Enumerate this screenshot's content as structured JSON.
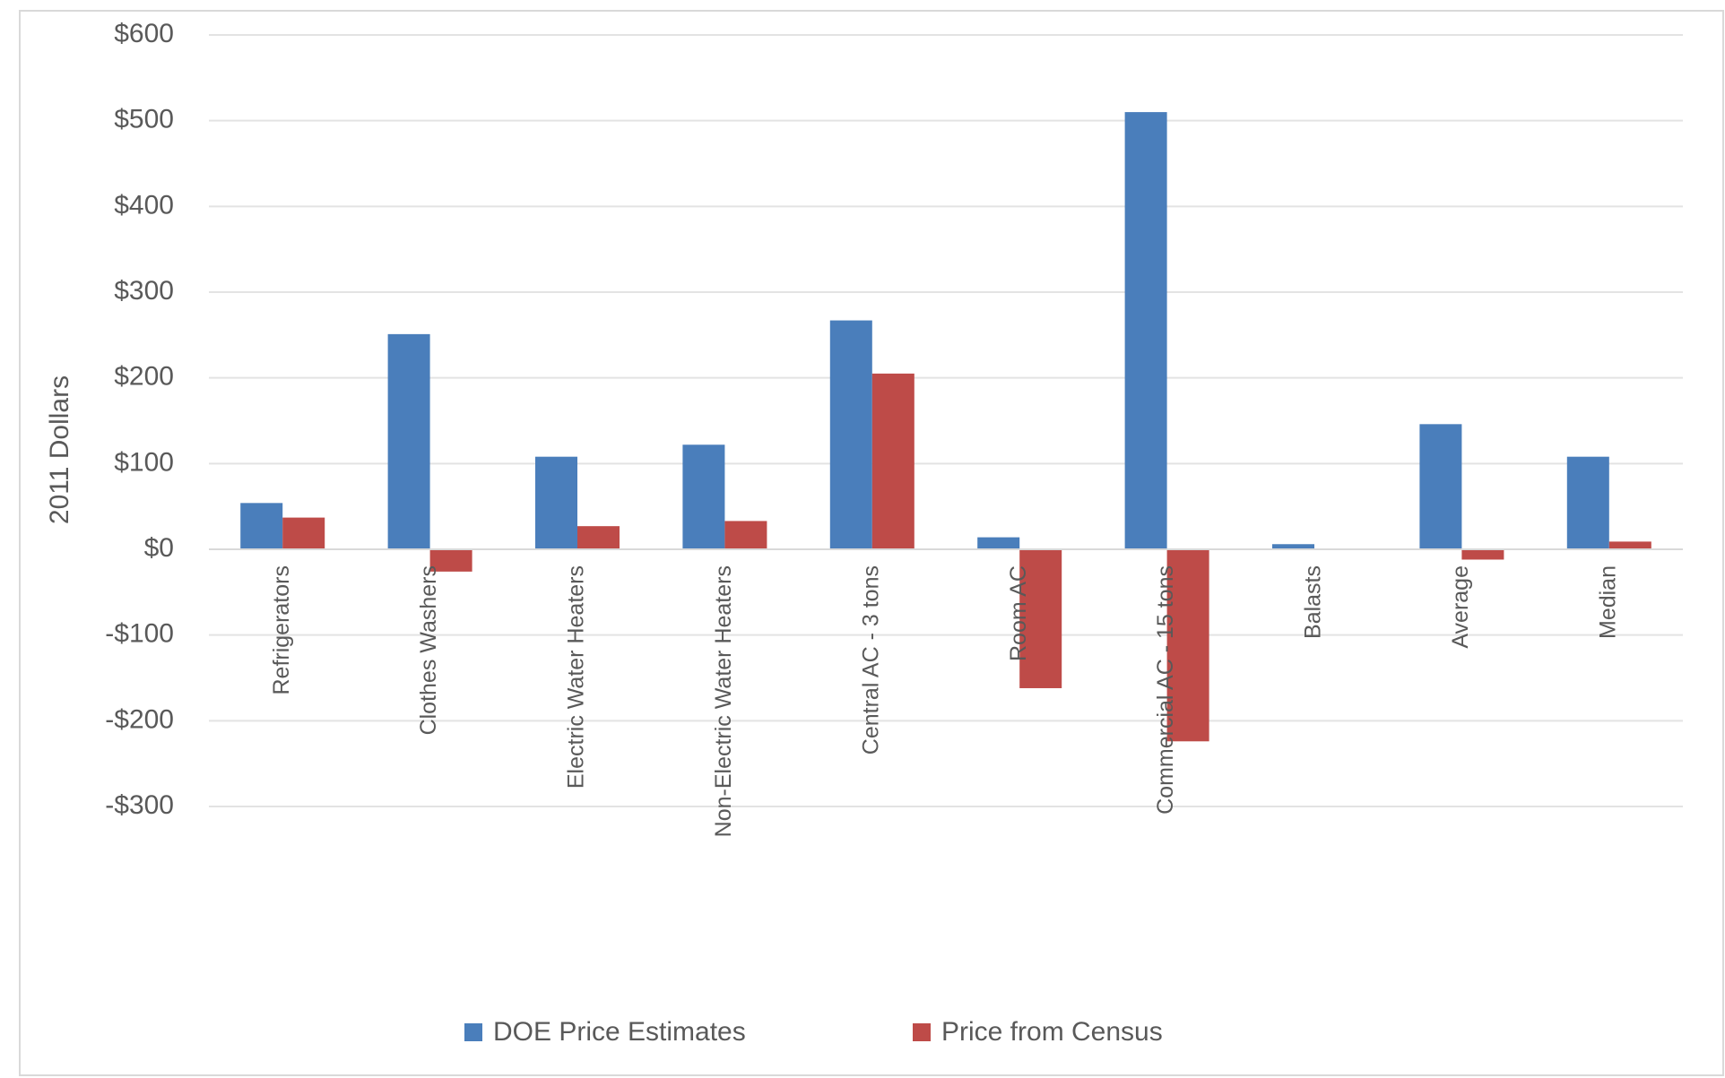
{
  "chart_data": {
    "type": "bar",
    "y_label": "2011 Dollars",
    "categories": [
      "Refrigerators",
      "Clothes Washers",
      "Electric Water Heaters",
      "Non-Electric Water Heaters",
      "Central AC - 3 tons",
      "Room AC",
      "Commercial AC - 15 tons",
      "Balasts",
      "Average",
      "Median"
    ],
    "series": [
      {
        "name": "DOE Price Estimates",
        "color": "#4a7ebb",
        "values": [
          54,
          251,
          108,
          122,
          267,
          14,
          510,
          6,
          146,
          108
        ]
      },
      {
        "name": "Price from Census",
        "color": "#be4b48",
        "values": [
          37,
          -26,
          27,
          33,
          205,
          -162,
          -224,
          0,
          -12,
          9
        ]
      }
    ],
    "ylim": [
      -300,
      600
    ],
    "yticks": [
      {
        "value": -300,
        "label": "-$300"
      },
      {
        "value": -200,
        "label": "-$200"
      },
      {
        "value": -100,
        "label": "-$100"
      },
      {
        "value": 0,
        "label": "$0"
      },
      {
        "value": 100,
        "label": "$100"
      },
      {
        "value": 200,
        "label": "$200"
      },
      {
        "value": 300,
        "label": "$300"
      },
      {
        "value": 400,
        "label": "$400"
      },
      {
        "value": 500,
        "label": "$500"
      },
      {
        "value": 600,
        "label": "$600"
      }
    ],
    "grid": true,
    "legend": "bottom"
  }
}
